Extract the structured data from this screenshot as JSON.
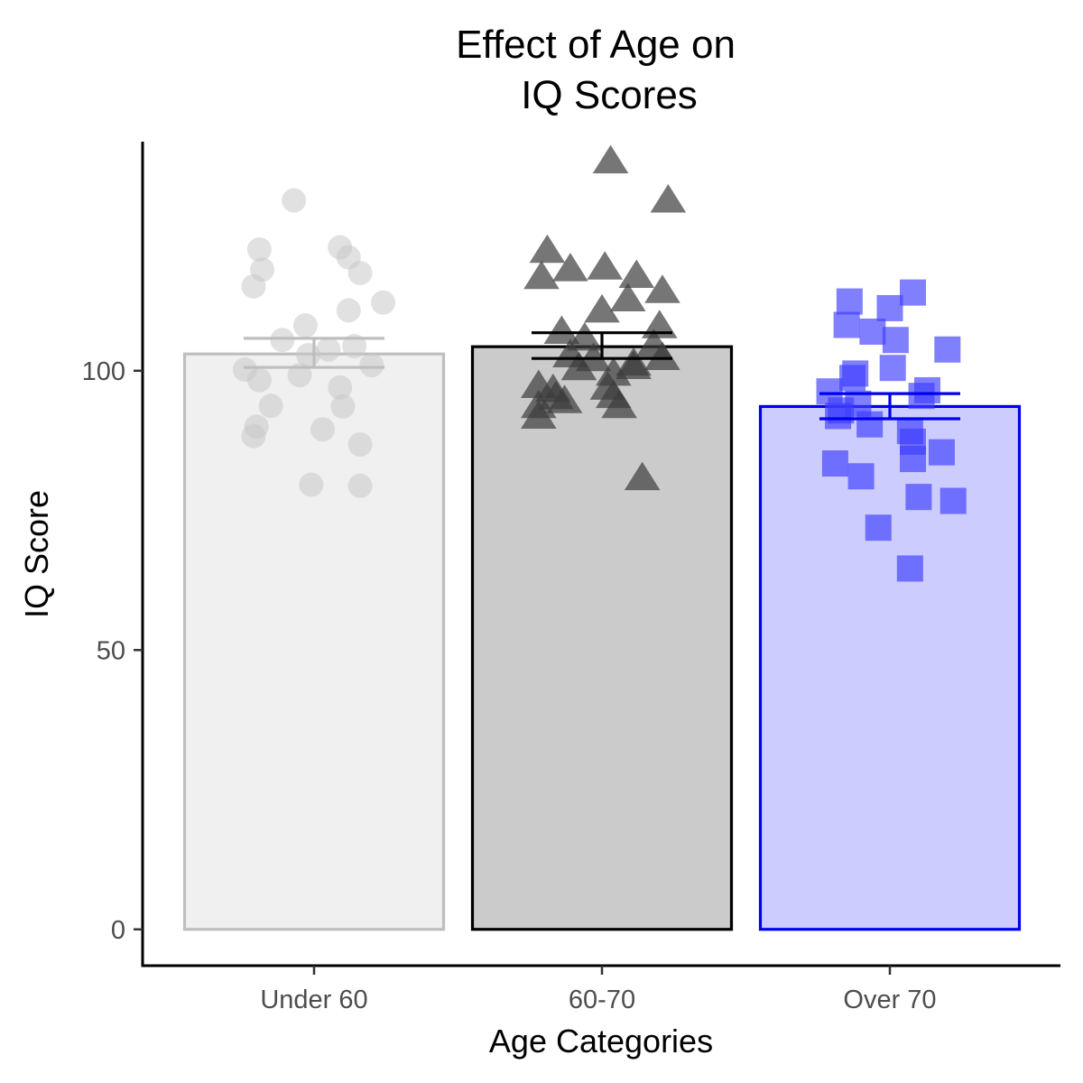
{
  "chart_data": {
    "type": "bar",
    "title_lines": [
      "Effect of Age on",
      "IQ Scores"
    ],
    "xlabel": "Age Categories",
    "ylabel": "IQ Score",
    "categories": [
      "Under 60",
      "60-70",
      "Over 70"
    ],
    "means": [
      103,
      104.3,
      93.6
    ],
    "se_low": [
      100.6,
      102.2,
      91.4
    ],
    "se_high": [
      105.8,
      106.8,
      95.9
    ],
    "ylim": [
      -6.5,
      141
    ],
    "yticks": [
      0,
      50,
      100
    ],
    "grid": false,
    "legend": "none",
    "bar_fill_colors": [
      "#f0f0f0",
      "#cbcbcb",
      "#ccccff"
    ],
    "bar_line_colors": [
      "#bebebe",
      "#000000",
      "#0000ee"
    ],
    "point_colors": [
      "#c8c8c8",
      "#3c3c3c",
      "#3c3cff"
    ],
    "point_shapes": [
      "circle",
      "triangle",
      "square"
    ],
    "points": [
      [
        {
          "x": -0.07,
          "y": 130.5
        },
        {
          "x": -0.19,
          "y": 121.7
        },
        {
          "x": 0.09,
          "y": 122.1
        },
        {
          "x": 0.12,
          "y": 120.3
        },
        {
          "x": -0.18,
          "y": 118.1
        },
        {
          "x": 0.16,
          "y": 117.5
        },
        {
          "x": -0.21,
          "y": 115.1
        },
        {
          "x": 0.24,
          "y": 112.2
        },
        {
          "x": 0.12,
          "y": 110.8
        },
        {
          "x": -0.03,
          "y": 108.1
        },
        {
          "x": -0.11,
          "y": 105.5
        },
        {
          "x": 0.14,
          "y": 104.4
        },
        {
          "x": -0.02,
          "y": 102.8
        },
        {
          "x": 0.05,
          "y": 103.8
        },
        {
          "x": -0.24,
          "y": 100.2
        },
        {
          "x": 0.2,
          "y": 101.0
        },
        {
          "x": -0.05,
          "y": 99.2
        },
        {
          "x": -0.19,
          "y": 98.3
        },
        {
          "x": 0.09,
          "y": 97.0
        },
        {
          "x": -0.15,
          "y": 93.7
        },
        {
          "x": 0.1,
          "y": 93.6
        },
        {
          "x": -0.2,
          "y": 90.0
        },
        {
          "x": 0.03,
          "y": 89.5
        },
        {
          "x": -0.21,
          "y": 88.3
        },
        {
          "x": 0.16,
          "y": 86.8
        },
        {
          "x": -0.01,
          "y": 79.6
        },
        {
          "x": 0.16,
          "y": 79.4
        }
      ],
      [
        {
          "x": 0.03,
          "y": 137.5
        },
        {
          "x": 0.23,
          "y": 130.5
        },
        {
          "x": -0.19,
          "y": 121.5
        },
        {
          "x": -0.11,
          "y": 118.2
        },
        {
          "x": 0.01,
          "y": 118.5
        },
        {
          "x": 0.12,
          "y": 117.0
        },
        {
          "x": -0.21,
          "y": 116.8
        },
        {
          "x": 0.21,
          "y": 114.3
        },
        {
          "x": 0.09,
          "y": 112.8
        },
        {
          "x": 0.0,
          "y": 110.8
        },
        {
          "x": 0.2,
          "y": 108.0
        },
        {
          "x": -0.14,
          "y": 107.0
        },
        {
          "x": -0.06,
          "y": 105.8
        },
        {
          "x": 0.18,
          "y": 104.6
        },
        {
          "x": -0.11,
          "y": 102.8
        },
        {
          "x": -0.03,
          "y": 102.1
        },
        {
          "x": 0.11,
          "y": 101.3
        },
        {
          "x": 0.21,
          "y": 102.3
        },
        {
          "x": -0.08,
          "y": 100.5
        },
        {
          "x": 0.11,
          "y": 100.7
        },
        {
          "x": 0.04,
          "y": 99.5
        },
        {
          "x": -0.22,
          "y": 97.3
        },
        {
          "x": -0.17,
          "y": 96.6
        },
        {
          "x": -0.16,
          "y": 95.3
        },
        {
          "x": 0.02,
          "y": 97.0
        },
        {
          "x": 0.04,
          "y": 95.5
        },
        {
          "x": -0.13,
          "y": 94.6
        },
        {
          "x": -0.22,
          "y": 93.7
        },
        {
          "x": 0.06,
          "y": 93.7
        },
        {
          "x": -0.22,
          "y": 91.8
        },
        {
          "x": 0.14,
          "y": 80.8
        }
      ],
      [
        {
          "x": 0.08,
          "y": 114.0
        },
        {
          "x": -0.14,
          "y": 112.4
        },
        {
          "x": 0.0,
          "y": 111.2
        },
        {
          "x": -0.15,
          "y": 108.2
        },
        {
          "x": -0.06,
          "y": 107.0
        },
        {
          "x": 0.02,
          "y": 105.5
        },
        {
          "x": 0.2,
          "y": 103.8
        },
        {
          "x": 0.01,
          "y": 100.5
        },
        {
          "x": -0.13,
          "y": 98.7
        },
        {
          "x": -0.12,
          "y": 99.5
        },
        {
          "x": -0.21,
          "y": 96.3
        },
        {
          "x": 0.13,
          "y": 96.5
        },
        {
          "x": 0.11,
          "y": 95.5
        },
        {
          "x": -0.11,
          "y": 94.1
        },
        {
          "x": -0.17,
          "y": 92.9
        },
        {
          "x": -0.18,
          "y": 91.9
        },
        {
          "x": -0.07,
          "y": 90.4
        },
        {
          "x": 0.07,
          "y": 89.2
        },
        {
          "x": 0.08,
          "y": 87.3
        },
        {
          "x": 0.18,
          "y": 85.4
        },
        {
          "x": 0.08,
          "y": 84.2
        },
        {
          "x": -0.19,
          "y": 83.4
        },
        {
          "x": -0.1,
          "y": 81.1
        },
        {
          "x": 0.1,
          "y": 77.4
        },
        {
          "x": 0.22,
          "y": 76.7
        },
        {
          "x": -0.04,
          "y": 71.9
        },
        {
          "x": 0.07,
          "y": 64.6
        }
      ]
    ]
  }
}
